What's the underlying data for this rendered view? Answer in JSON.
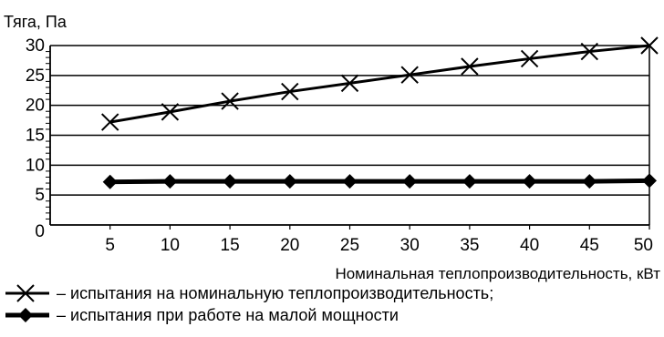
{
  "chart_data": {
    "type": "line",
    "title": "",
    "ylabel": "Тяга, Па",
    "xlabel": "Номинальная теплопроизводительность, кВт",
    "x": [
      5,
      10,
      15,
      20,
      25,
      30,
      35,
      40,
      45,
      50
    ],
    "x_ticks": [
      "5",
      "10",
      "15",
      "20",
      "25",
      "30",
      "35",
      "40",
      "45",
      "50"
    ],
    "y_ticks": [
      "0",
      "5",
      "10",
      "15",
      "20",
      "25",
      "30"
    ],
    "xlim": [
      0,
      50
    ],
    "ylim": [
      0,
      30
    ],
    "grid": "horizontal",
    "legend_position": "bottom",
    "series": [
      {
        "name": "– испытания на номинальную теплопроизводительность;",
        "marker": "x-icon",
        "values": [
          17.2,
          18.9,
          20.7,
          22.3,
          23.7,
          25.1,
          26.5,
          27.8,
          29.0,
          30.0
        ]
      },
      {
        "name": "– испытания при работе на малой мощности",
        "marker": "diamond-icon",
        "values": [
          7.2,
          7.3,
          7.3,
          7.3,
          7.3,
          7.3,
          7.3,
          7.3,
          7.3,
          7.4
        ]
      }
    ]
  }
}
